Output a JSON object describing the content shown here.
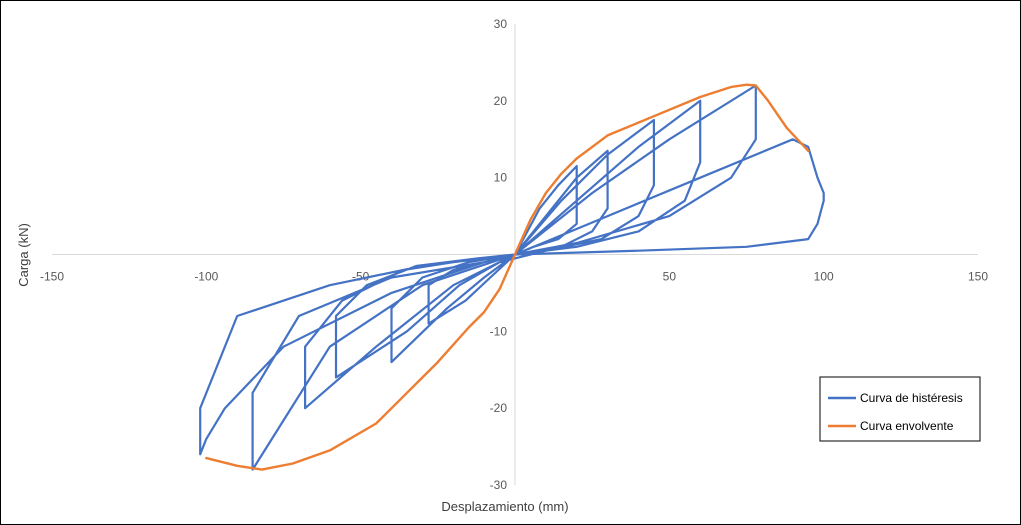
{
  "chart_data": {
    "type": "line",
    "xlabel": "Desplazamiento (mm)",
    "ylabel": "Carga (kN)",
    "xlim": [
      -150,
      150
    ],
    "ylim": [
      -30,
      30
    ],
    "x_ticks": [
      -150,
      -100,
      -50,
      50,
      100,
      150
    ],
    "y_ticks": [
      30,
      20,
      10,
      -10,
      -20,
      -30
    ],
    "grid": false,
    "legend_position": "bottom-right",
    "series": [
      {
        "name": "Curva de histéresis",
        "color": "#4472C4",
        "x": [
          0,
          8,
          14,
          20,
          20,
          14,
          6,
          0,
          -8,
          -16,
          -28,
          -28,
          -20,
          -10,
          0,
          10,
          20,
          30,
          30,
          25,
          15,
          0,
          -10,
          -22,
          -40,
          -40,
          -30,
          -15,
          0,
          15,
          30,
          45,
          45,
          40,
          28,
          10,
          -5,
          -18,
          -35,
          -58,
          -58,
          -48,
          -32,
          -12,
          0,
          20,
          40,
          60,
          60,
          55,
          40,
          20,
          0,
          -20,
          -45,
          -68,
          -68,
          -56,
          -36,
          -12,
          0,
          25,
          50,
          78,
          78,
          70,
          50,
          20,
          0,
          -30,
          -60,
          -85,
          -85,
          -70,
          -40,
          -10,
          0,
          30,
          60,
          90,
          95,
          98,
          100,
          100,
          98,
          95,
          75,
          40,
          0,
          -30,
          -60,
          -90,
          -102,
          -102,
          -100,
          -94,
          -75,
          -40,
          -10,
          0
        ],
        "y": [
          0,
          6,
          9,
          11.5,
          4,
          2,
          1,
          0,
          -3,
          -6,
          -9,
          -4,
          -2,
          -1,
          0,
          5,
          10,
          13.5,
          6,
          3,
          1,
          0,
          -3,
          -7,
          -14,
          -7,
          -3,
          -1,
          0,
          7,
          13,
          17.5,
          9,
          5,
          2,
          0.5,
          -1,
          -4,
          -10,
          -16,
          -8,
          -4,
          -1.5,
          -0.5,
          0,
          7,
          14,
          20,
          12,
          7,
          3,
          1,
          0,
          -4,
          -12,
          -20,
          -12,
          -6,
          -2,
          -0.5,
          0,
          8,
          15,
          22,
          15,
          10,
          5,
          1.5,
          0,
          -4,
          -12,
          -28,
          -18,
          -8,
          -3,
          -1,
          0,
          5,
          10,
          15,
          14,
          10,
          8,
          7,
          4,
          2,
          1,
          0.5,
          0,
          -1.5,
          -4,
          -8,
          -20,
          -26,
          -24,
          -20,
          -12,
          -5,
          -1,
          0
        ]
      },
      {
        "name": "Curva envolvente",
        "color": "#ED7D31",
        "x": [
          -100,
          -90,
          -82,
          -72,
          -60,
          -45,
          -35,
          -25,
          -15,
          -10,
          -5,
          0,
          5,
          10,
          15,
          20,
          30,
          45,
          60,
          70,
          75,
          78,
          82,
          88,
          95
        ],
        "y": [
          -26.5,
          -27.5,
          -28,
          -27.2,
          -25.5,
          -22,
          -18,
          -14,
          -9.5,
          -7.5,
          -4.5,
          0,
          4.5,
          8,
          10.5,
          12.5,
          15.5,
          18,
          20.5,
          21.8,
          22.1,
          22,
          20,
          16.5,
          13.5
        ]
      }
    ]
  }
}
